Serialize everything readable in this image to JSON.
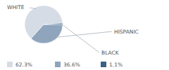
{
  "chart_data": {
    "type": "pie",
    "categories": [
      "WHITE",
      "HISPANIC",
      "BLACK"
    ],
    "values": [
      62.3,
      36.6,
      1.1
    ],
    "value_labels": [
      "62.3%",
      "36.6%",
      "1.1%"
    ],
    "colors": [
      "#d5dce6",
      "#8fa4bd",
      "#3d6085"
    ],
    "legend": "bottom"
  }
}
